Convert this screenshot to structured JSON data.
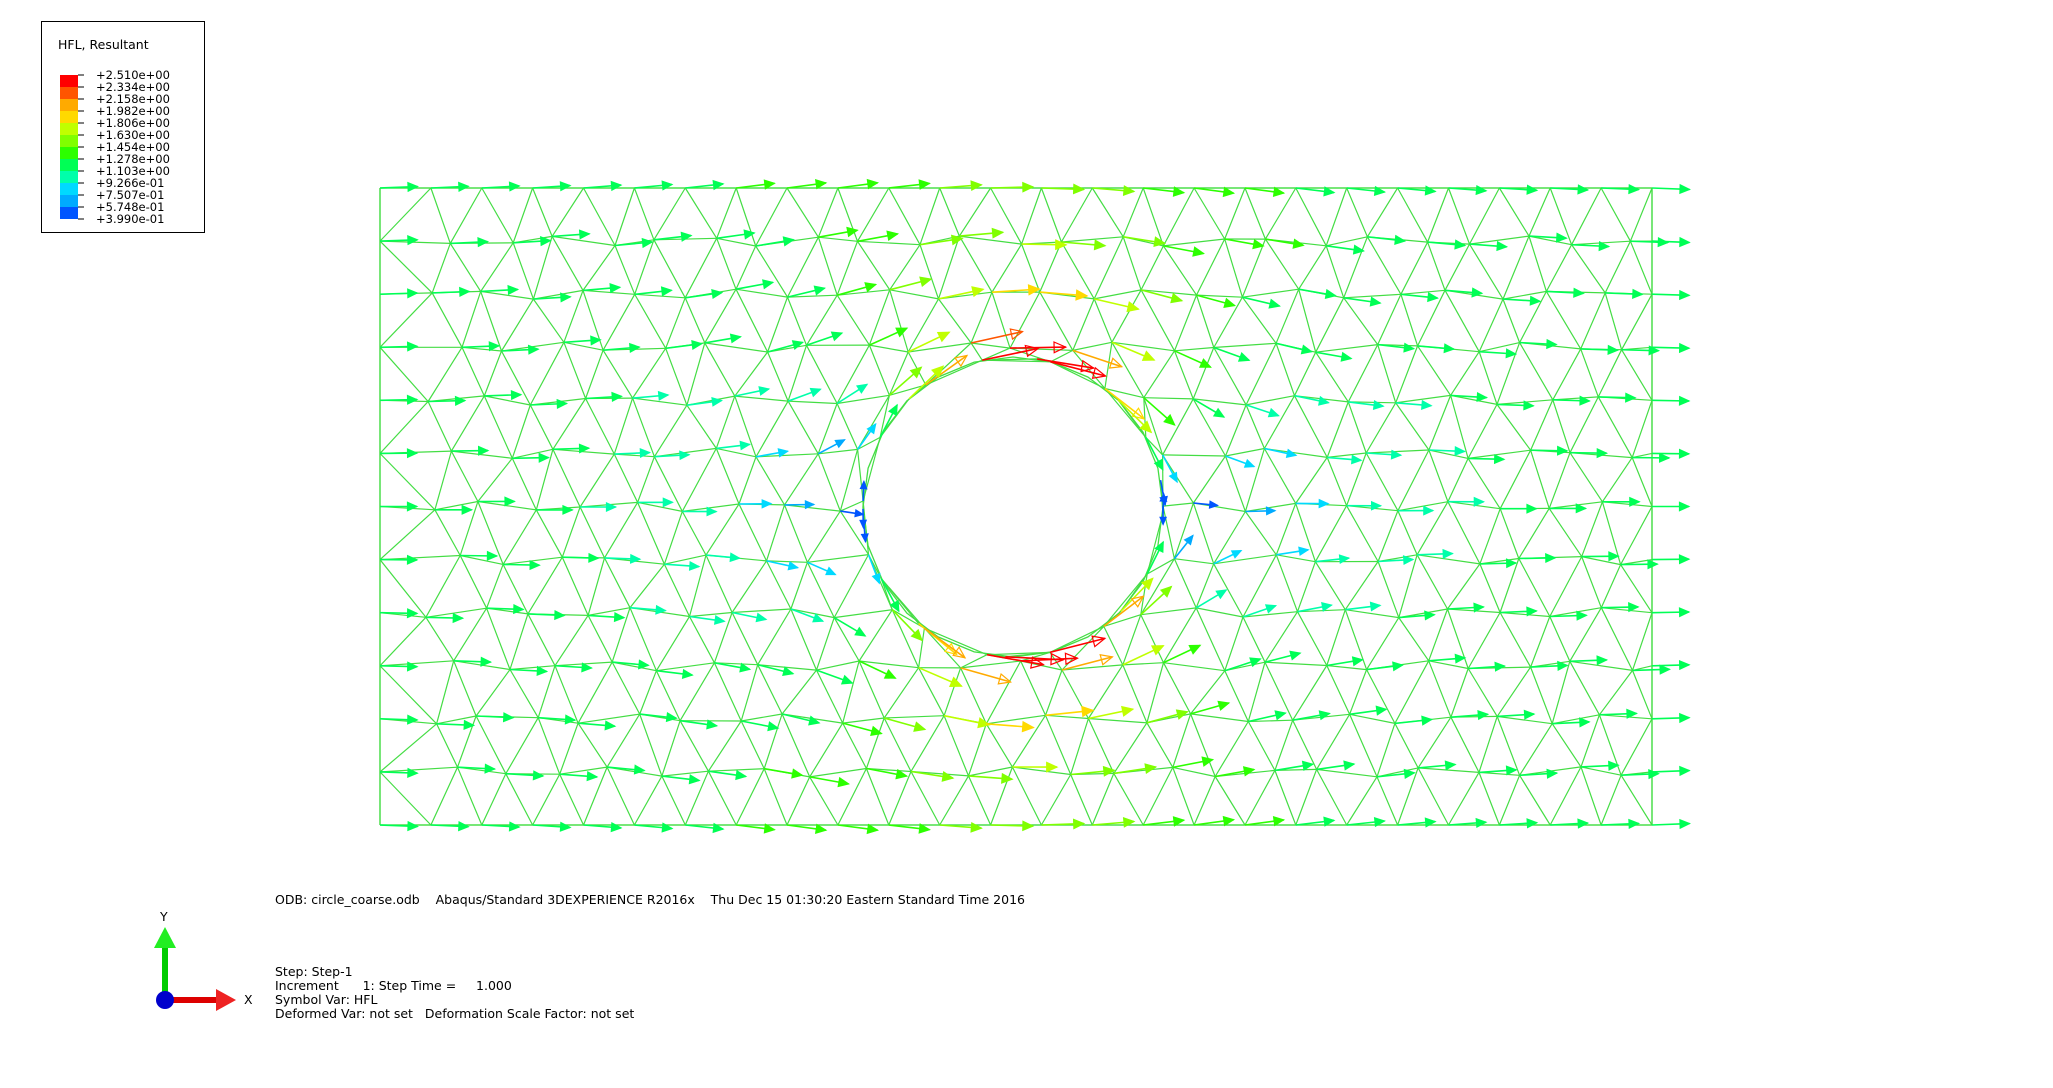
{
  "legend": {
    "title": "HFL, Resultant",
    "levels": [
      "+2.510e+00",
      "+2.334e+00",
      "+2.158e+00",
      "+1.982e+00",
      "+1.806e+00",
      "+1.630e+00",
      "+1.454e+00",
      "+1.278e+00",
      "+1.103e+00",
      "+9.266e-01",
      "+7.507e-01",
      "+5.748e-01",
      "+3.990e-01"
    ],
    "colors": [
      "#ff0000",
      "#ff5500",
      "#ffaa00",
      "#ffd900",
      "#c0ff00",
      "#80ff00",
      "#2cff00",
      "#00ff55",
      "#00ffaa",
      "#00d9ff",
      "#00aaff",
      "#0055ff",
      "#0000ff"
    ]
  },
  "info": {
    "line1": "ODB: circle_coarse.odb    Abaqus/Standard 3DEXPERIENCE R2016x    Thu Dec 15 01:30:20 Eastern Standard Time 2016",
    "step": "Step: Step-1",
    "increment": "Increment      1: Step Time =     1.000",
    "symbol_var": "Symbol Var: HFL",
    "deformed_var": "Deformed Var: not set   Deformation Scale Factor: not set"
  },
  "triad": {
    "x_label": "X",
    "y_label": "Y"
  },
  "colors": {
    "mesh": "#44dd44",
    "background": "#ffffff"
  }
}
